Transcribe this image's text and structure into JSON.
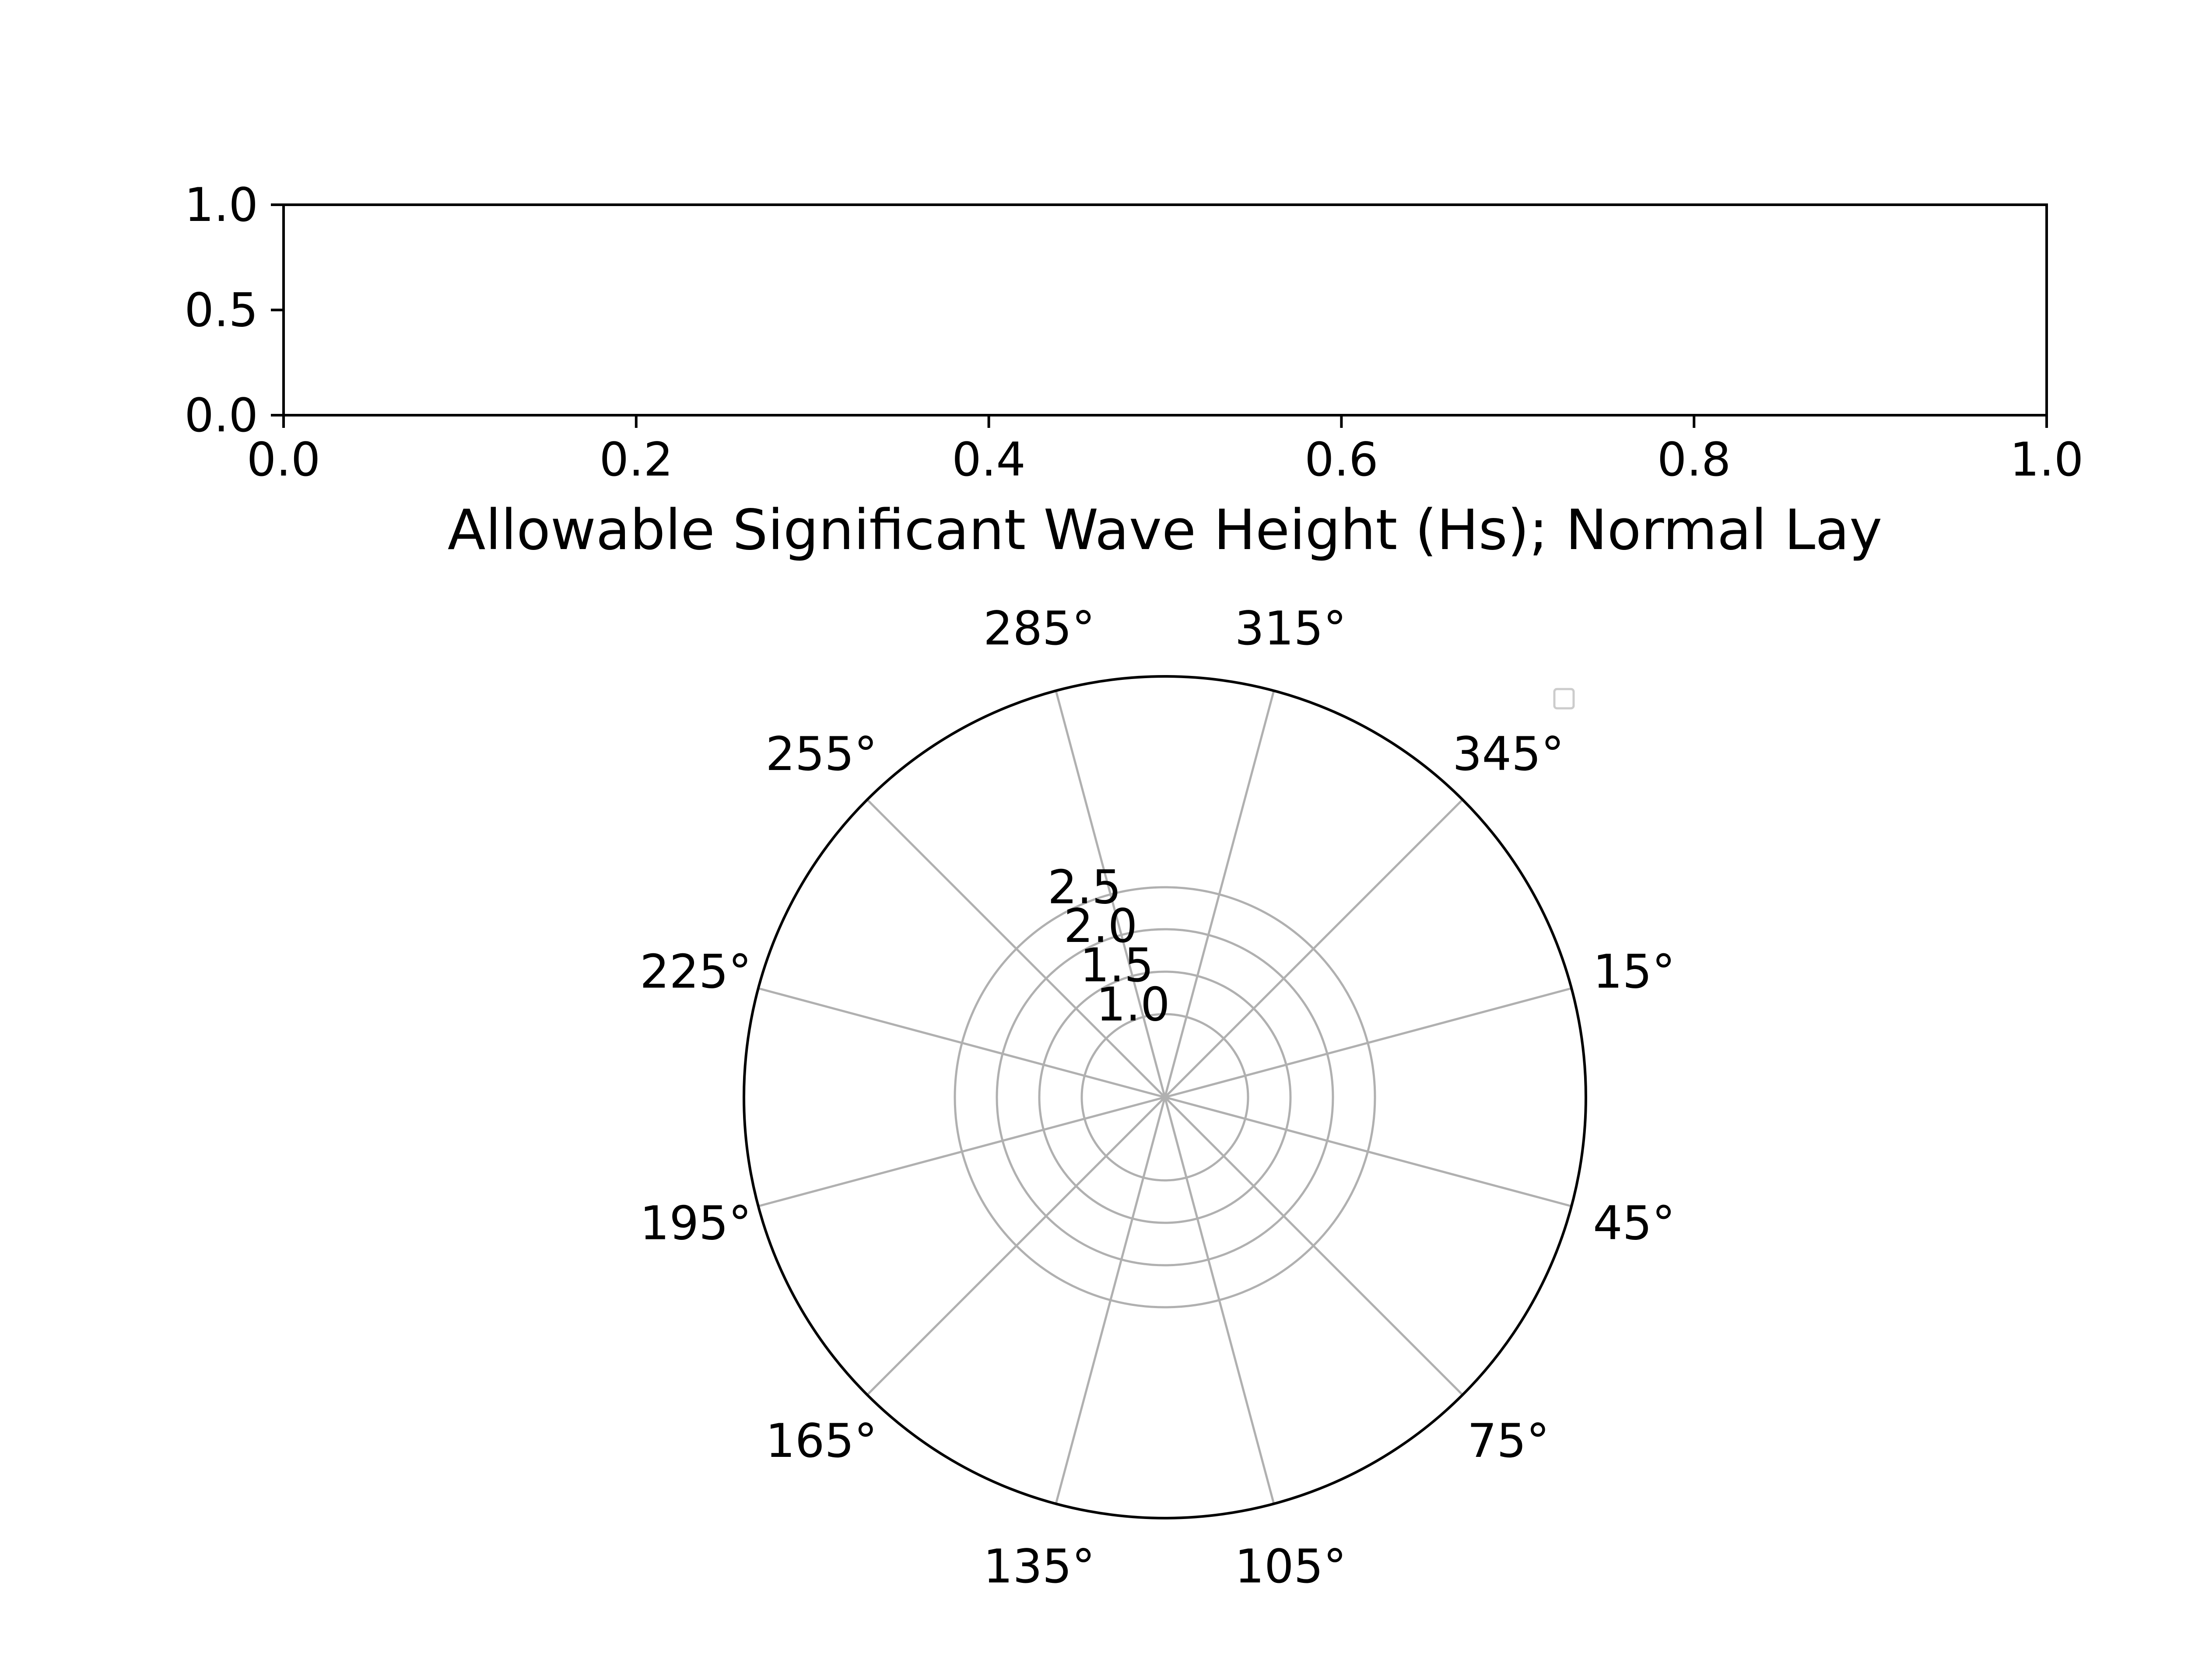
{
  "chart_data": [
    {
      "type": "line",
      "title": "",
      "xlabel": "",
      "ylabel": "",
      "xlim": [
        0.0,
        1.0
      ],
      "ylim": [
        0.0,
        1.0
      ],
      "x_ticks": [
        "0.0",
        "0.2",
        "0.4",
        "0.6",
        "0.8",
        "1.0"
      ],
      "y_ticks": [
        "0.0",
        "0.5",
        "1.0"
      ],
      "series": [],
      "grid": false
    },
    {
      "type": "polar",
      "title": "Allowable Significant Wave Height (Hs); Normal Lay",
      "angle_ticks": [
        "285°",
        "255°",
        "225°",
        "195°",
        "165°",
        "135°",
        "105°",
        "75°",
        "45°",
        "15°",
        "345°",
        "315°"
      ],
      "radial_ticks": [
        "1.0",
        "1.5",
        "2.0",
        "2.5"
      ],
      "series": [],
      "grid": true,
      "legend": {
        "placement": "top-right",
        "entries": [
          ""
        ]
      }
    }
  ],
  "colors": {
    "axis": "#000000",
    "grid": "#b0b0b0",
    "background": "#ffffff"
  }
}
